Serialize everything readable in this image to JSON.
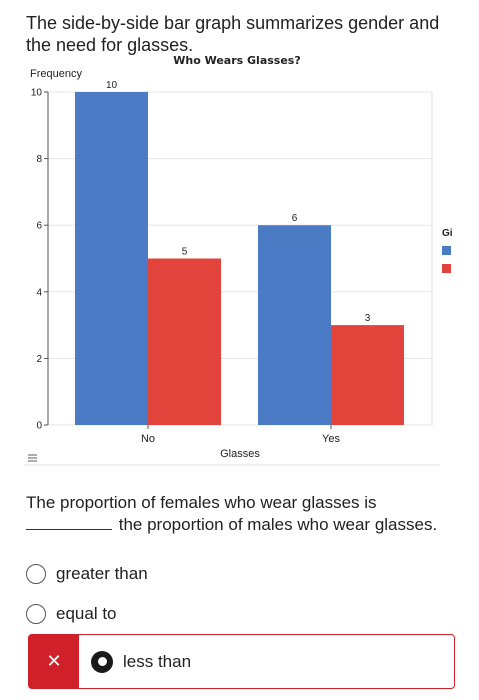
{
  "question": {
    "title": "The side-by-side bar graph summarizes gender and the need for glasses.",
    "prompt_after_blank": "the proportion of males who wear glasses.",
    "prompt_before_blank": "The proportion of females who wear glasses is"
  },
  "chart_data": {
    "type": "bar",
    "title": "Who Wears Glasses?",
    "xlabel": "Glasses",
    "ylabel": "Frequency",
    "categories": [
      "No",
      "Yes"
    ],
    "series": [
      {
        "values": [
          10,
          6
        ],
        "color": "#4a7bc4"
      },
      {
        "values": [
          5,
          3
        ],
        "color": "#e2433a"
      }
    ],
    "ylim": [
      0,
      10
    ],
    "yticks": [
      0,
      2,
      4,
      6,
      8,
      10
    ],
    "grid": true,
    "legend_title": "Gi",
    "legend_placement": "right",
    "menu_icon": "hamburger-menu-icon"
  },
  "options": [
    {
      "label": "greater than",
      "selected": false
    },
    {
      "label": "equal to",
      "selected": false
    },
    {
      "label": "less than",
      "selected": true
    }
  ],
  "feedback": {
    "wrong_mark": "✕",
    "color": "#d0202a"
  }
}
